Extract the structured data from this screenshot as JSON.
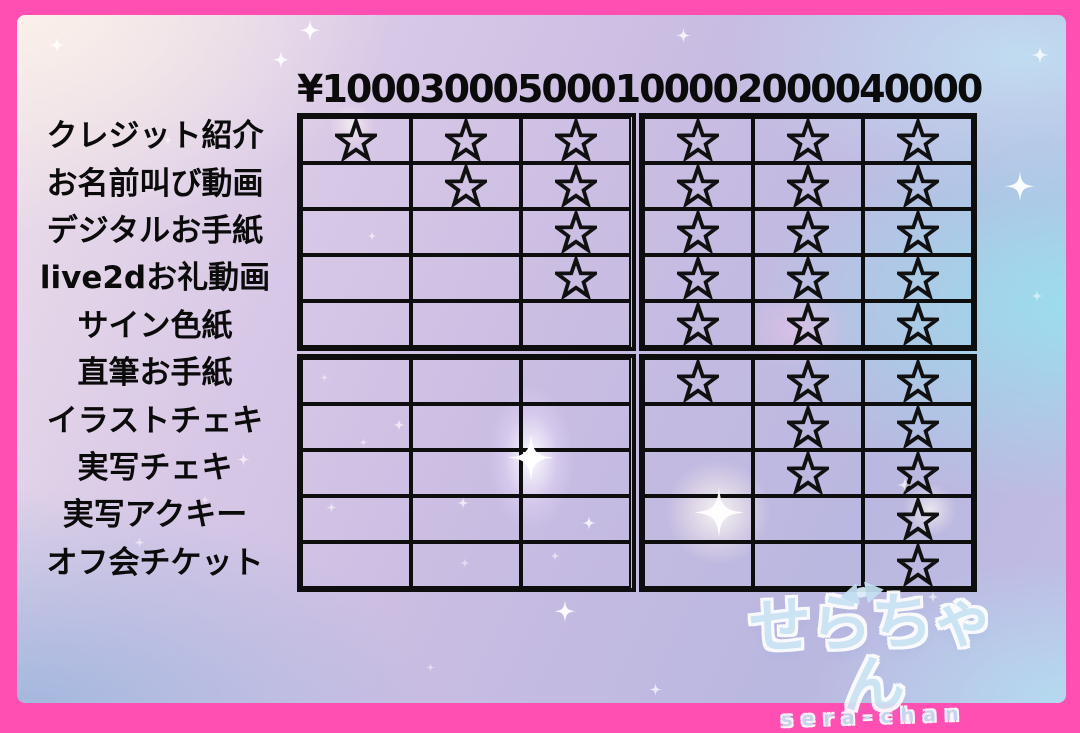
{
  "pricing_table": {
    "column_headers": [
      "¥1000",
      "3000",
      "5000",
      "10000",
      "20000",
      "40000"
    ],
    "rows": [
      {
        "label": "クレジット紹介",
        "stars": [
          true,
          true,
          true,
          true,
          true,
          true
        ]
      },
      {
        "label": "お名前叫び動画",
        "stars": [
          false,
          true,
          true,
          true,
          true,
          true
        ]
      },
      {
        "label": "デジタルお手紙",
        "stars": [
          false,
          false,
          true,
          true,
          true,
          true
        ]
      },
      {
        "label": "live2dお礼動画",
        "stars": [
          false,
          false,
          true,
          true,
          true,
          true
        ]
      },
      {
        "label": "サイン色紙",
        "stars": [
          false,
          false,
          false,
          true,
          true,
          true
        ]
      },
      {
        "label": "直筆お手紙",
        "stars": [
          false,
          false,
          false,
          true,
          true,
          true
        ]
      },
      {
        "label": "イラストチェキ",
        "stars": [
          false,
          false,
          false,
          false,
          true,
          true
        ]
      },
      {
        "label": "実写チェキ",
        "stars": [
          false,
          false,
          false,
          false,
          true,
          true
        ]
      },
      {
        "label": "実写アクキー",
        "stars": [
          false,
          false,
          false,
          false,
          false,
          true
        ]
      },
      {
        "label": "オフ会チケット",
        "stars": [
          false,
          false,
          false,
          false,
          false,
          true
        ]
      }
    ],
    "marker_icon": "star-outline-icon"
  },
  "logo": {
    "main": "せらちゃん",
    "sub": "sera-chan"
  },
  "colors": {
    "frame_pink": "#ff4fb2",
    "grid_line": "#0e0e0e",
    "text": "#0b0b0b",
    "logo_blue": "#cde7f5"
  },
  "chart_data": {
    "type": "table",
    "title": "",
    "columns": [
      "¥1000",
      "3000",
      "5000",
      "10000",
      "20000",
      "40000"
    ],
    "row_labels": [
      "クレジット紹介",
      "お名前叫び動画",
      "デジタルお手紙",
      "live2dお礼動画",
      "サイン色紙",
      "直筆お手紙",
      "イラストチェキ",
      "実写チェキ",
      "実写アクキー",
      "オフ会チケット"
    ],
    "cells": [
      [
        1,
        1,
        1,
        1,
        1,
        1
      ],
      [
        0,
        1,
        1,
        1,
        1,
        1
      ],
      [
        0,
        0,
        1,
        1,
        1,
        1
      ],
      [
        0,
        0,
        1,
        1,
        1,
        1
      ],
      [
        0,
        0,
        0,
        1,
        1,
        1
      ],
      [
        0,
        0,
        0,
        1,
        1,
        1
      ],
      [
        0,
        0,
        0,
        0,
        1,
        1
      ],
      [
        0,
        0,
        0,
        0,
        1,
        1
      ],
      [
        0,
        0,
        0,
        0,
        0,
        1
      ],
      [
        0,
        0,
        0,
        0,
        0,
        1
      ]
    ],
    "cell_marker": "outlined star = reward included at this donation tier",
    "layout": "reward rows × donation-amount columns; grid split into quadrants by double lines after column 3 and row 5"
  }
}
